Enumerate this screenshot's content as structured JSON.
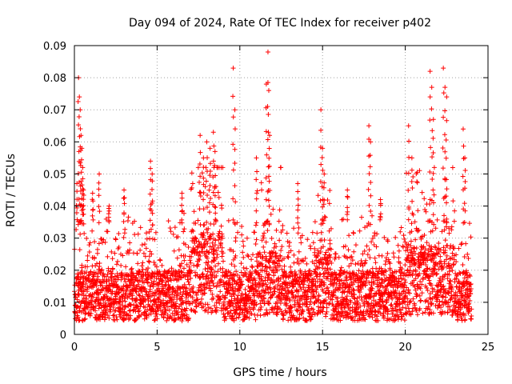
{
  "chart_data": {
    "type": "scatter",
    "title": "Day 094 of 2024, Rate Of TEC Index for receiver p402",
    "xlabel": "GPS time / hours",
    "ylabel": "ROTI / TECUs",
    "xlim": [
      0,
      25
    ],
    "ylim": [
      0,
      0.09
    ],
    "xticks": [
      0,
      5,
      10,
      15,
      20,
      25
    ],
    "yticks": [
      0,
      0.01,
      0.02,
      0.03,
      0.04,
      0.05,
      0.06,
      0.07,
      0.08,
      0.09
    ],
    "xtick_labels": [
      "0",
      "5",
      "10",
      "15",
      "20",
      "25"
    ],
    "ytick_labels": [
      "0",
      "0.01",
      "0.02",
      "0.03",
      "0.04",
      "0.05",
      "0.06",
      "0.07",
      "0.08",
      "0.09"
    ],
    "grid": true,
    "marker": "+",
    "marker_color": "#ff0000",
    "series": [
      {
        "name": "ROTI",
        "x": [
          0.15,
          0.25,
          0.3,
          0.35,
          0.4,
          0.45,
          0.5,
          0.55,
          1.1,
          1.5,
          2.1,
          3.0,
          4.6,
          4.7,
          6.5,
          7.6,
          7.8,
          8.0,
          8.2,
          8.4,
          8.5,
          9.6,
          9.7,
          11.0,
          11.6,
          11.7,
          11.75,
          11.8,
          13.5,
          14.9,
          15.0,
          15.1,
          16.5,
          17.8,
          17.9,
          18.5,
          20.2,
          20.4,
          21.5,
          21.6,
          21.7,
          22.3,
          22.4,
          22.5,
          23.5,
          23.6
        ],
        "y": [
          0.047,
          0.08,
          0.074,
          0.07,
          0.062,
          0.058,
          0.052,
          0.045,
          0.044,
          0.05,
          0.04,
          0.045,
          0.054,
          0.05,
          0.044,
          0.062,
          0.055,
          0.06,
          0.058,
          0.063,
          0.057,
          0.083,
          0.07,
          0.055,
          0.078,
          0.088,
          0.076,
          0.062,
          0.047,
          0.07,
          0.058,
          0.05,
          0.045,
          0.065,
          0.06,
          0.042,
          0.065,
          0.055,
          0.082,
          0.077,
          0.067,
          0.083,
          0.077,
          0.074,
          0.064,
          0.055
        ]
      }
    ],
    "dense_band": {
      "description_values_only": true,
      "x_range": [
        0,
        24
      ],
      "typical_y_range": [
        0.002,
        0.04
      ],
      "median_y": 0.012
    }
  }
}
